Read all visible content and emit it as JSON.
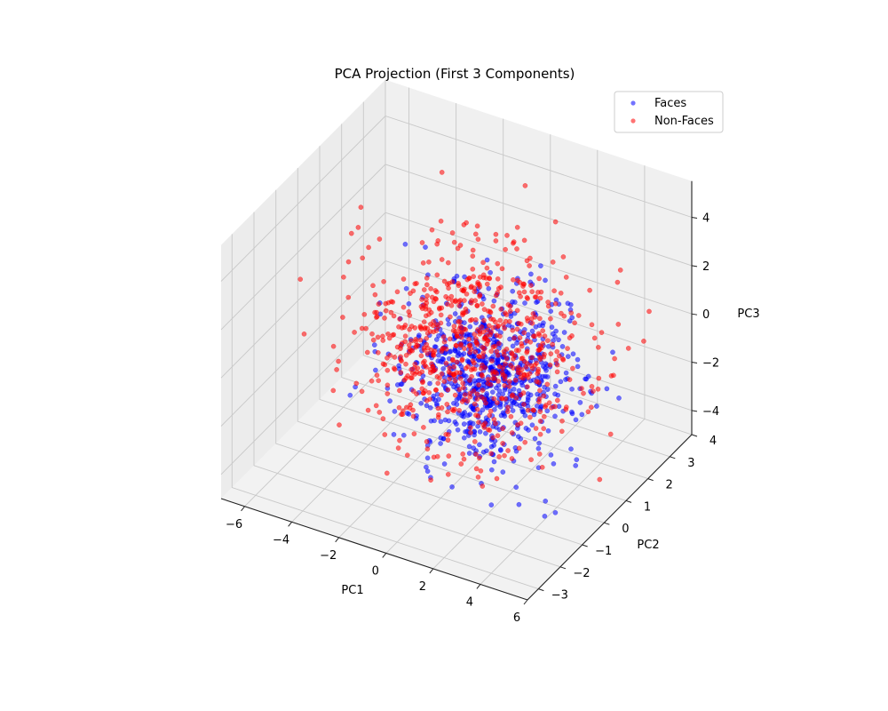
{
  "chart_data": {
    "type": "scatter",
    "dimensions": 3,
    "title": "PCA Projection (First 3 Components)",
    "xlabel": "PC1",
    "ylabel": "PC2",
    "zlabel": "PC3",
    "xlim": [
      -7,
      6
    ],
    "ylim": [
      -3.5,
      4
    ],
    "zlim": [
      -5,
      5.5
    ],
    "x_ticks": [
      -6,
      -4,
      -2,
      0,
      2,
      4,
      6
    ],
    "y_ticks": [
      -3,
      -2,
      -1,
      0,
      1,
      2,
      3,
      4
    ],
    "z_ticks": [
      -4,
      -2,
      0,
      2,
      4
    ],
    "grid": true,
    "legend": "top-right",
    "series": [
      {
        "name": "Faces",
        "color": "#0000ff",
        "opacity": 0.55,
        "n_points": 750,
        "center": [
          0.8,
          0.3,
          -0.8
        ],
        "spread": [
          1.6,
          0.9,
          1.4
        ]
      },
      {
        "name": "Non-Faces",
        "color": "#ff0000",
        "opacity": 0.55,
        "n_points": 750,
        "center": [
          -0.3,
          0.8,
          -0.4
        ],
        "spread": [
          2.1,
          1.2,
          1.8
        ]
      }
    ]
  }
}
